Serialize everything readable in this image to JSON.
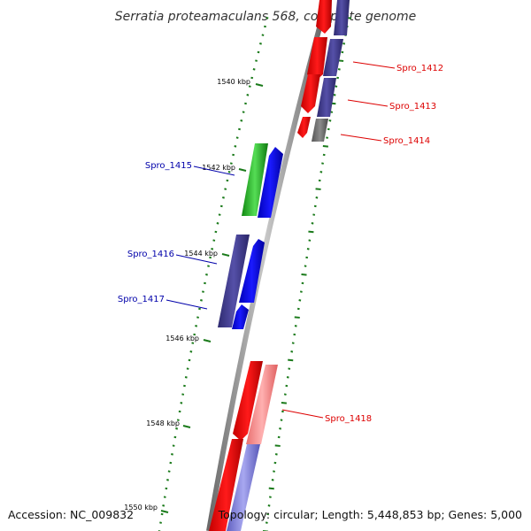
{
  "title": "Serratia proteamaculans 568, complete genome",
  "accession": "Accession: NC_009832",
  "summary": "Topology: circular; Length: 5,448,853 bp; Genes: 5,000",
  "ticks": [
    {
      "label": "1540 kbp"
    },
    {
      "label": "1542 kbp"
    },
    {
      "label": "1544 kbp"
    },
    {
      "label": "1546 kbp"
    },
    {
      "label": "1548 kbp"
    },
    {
      "label": "1550 kbp"
    }
  ],
  "genes": [
    {
      "name": "Spro_1412",
      "strand": "reverse",
      "color": "#dd0000"
    },
    {
      "name": "Spro_1413",
      "strand": "reverse",
      "color": "#dd0000"
    },
    {
      "name": "Spro_1414",
      "strand": "reverse",
      "color": "#dd0000"
    },
    {
      "name": "Spro_1415",
      "strand": "forward",
      "color": "#0000aa"
    },
    {
      "name": "Spro_1416",
      "strand": "forward",
      "color": "#0000aa"
    },
    {
      "name": "Spro_1417",
      "strand": "forward",
      "color": "#0000aa"
    },
    {
      "name": "Spro_1418",
      "strand": "reverse",
      "color": "#dd0000"
    }
  ],
  "colors": {
    "backbone": "#8a8a8a",
    "reverse_cds": "#ff0000",
    "forward_cds": "#0000ff",
    "cog_purple": "#3f3b8c",
    "cog_green": "#22aa22",
    "cog_grey": "#666666",
    "tick": "#1a7a1a"
  }
}
